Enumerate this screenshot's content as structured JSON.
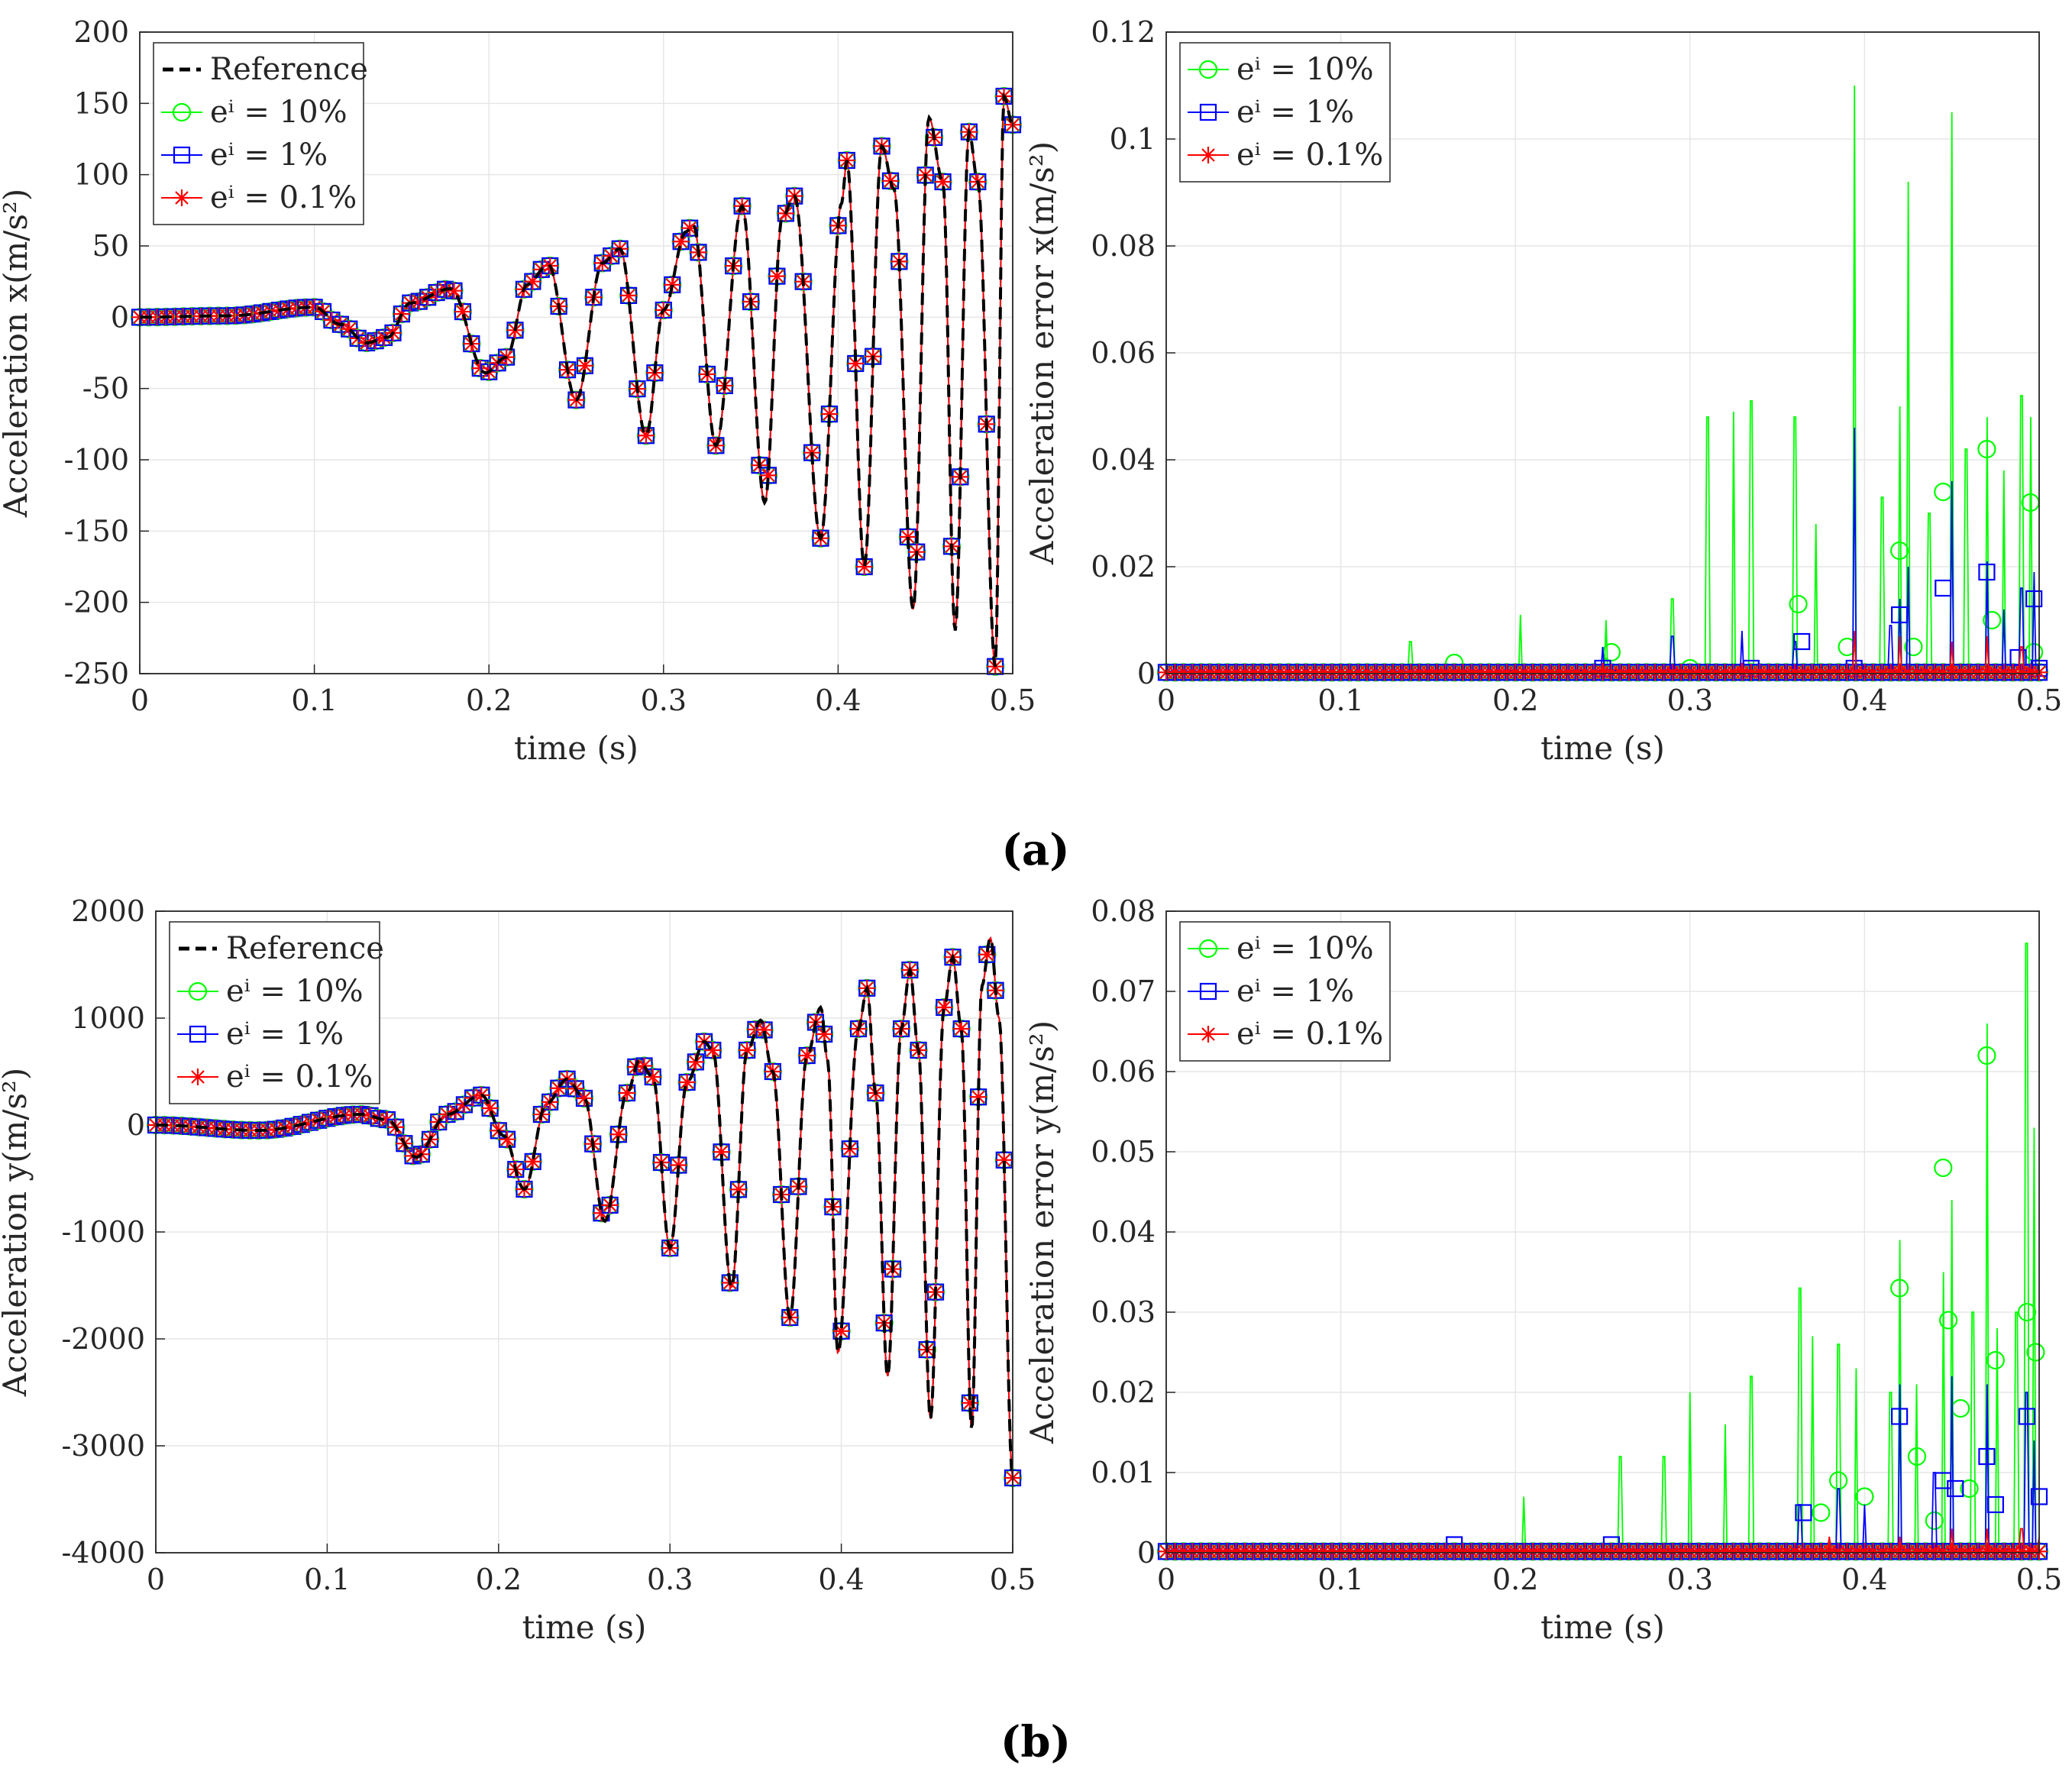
{
  "figure": {
    "panel_labels": [
      "(a)",
      "(b)"
    ]
  },
  "chart_data": [
    {
      "id": "ax",
      "type": "line",
      "panel": "(a)",
      "xlabel": "time (s)",
      "ylabel": "Acceleration x(m/s²)",
      "xlim": [
        0,
        0.5
      ],
      "ylim": [
        -250,
        200
      ],
      "xticks": [
        "0",
        "0.1",
        "0.2",
        "0.3",
        "0.4",
        "0.5"
      ],
      "yticks": [
        "-250",
        "-200",
        "-150",
        "-100",
        "-50",
        "0",
        "50",
        "100",
        "150",
        "200"
      ],
      "grid": true,
      "legend_position": "top-left",
      "legend": [
        "Reference",
        "eⁱ = 10%",
        "eⁱ = 1%",
        "eⁱ = 0.1%"
      ],
      "series": [
        {
          "name": "Reference",
          "style": "dashed",
          "color": "#000000"
        },
        {
          "name": "eⁱ = 10%",
          "marker": "circle",
          "color": "#00ff00"
        },
        {
          "name": "eⁱ = 1%",
          "marker": "square",
          "color": "#0000ff"
        },
        {
          "name": "eⁱ = 0.1%",
          "marker": "asterisk",
          "color": "#ff0000"
        }
      ],
      "signal_points": [
        [
          0,
          0
        ],
        [
          0.05,
          1
        ],
        [
          0.1,
          7
        ],
        [
          0.115,
          -5
        ],
        [
          0.13,
          -18
        ],
        [
          0.142,
          -14
        ],
        [
          0.155,
          10
        ],
        [
          0.178,
          20
        ],
        [
          0.198,
          -39
        ],
        [
          0.21,
          -28
        ],
        [
          0.222,
          23
        ],
        [
          0.234,
          37
        ],
        [
          0.25,
          -58
        ],
        [
          0.265,
          38
        ],
        [
          0.275,
          48
        ],
        [
          0.29,
          -83
        ],
        [
          0.3,
          5
        ],
        [
          0.313,
          60
        ],
        [
          0.317,
          65
        ],
        [
          0.33,
          -90
        ],
        [
          0.345,
          78
        ],
        [
          0.358,
          -130
        ],
        [
          0.368,
          70
        ],
        [
          0.375,
          85
        ],
        [
          0.39,
          -155
        ],
        [
          0.402,
          80
        ],
        [
          0.405,
          110
        ],
        [
          0.415,
          -175
        ],
        [
          0.425,
          120
        ],
        [
          0.432,
          90
        ],
        [
          0.443,
          -205
        ],
        [
          0.452,
          140
        ],
        [
          0.46,
          95
        ],
        [
          0.467,
          -220
        ],
        [
          0.475,
          130
        ],
        [
          0.48,
          95
        ],
        [
          0.49,
          -245
        ],
        [
          0.495,
          155
        ],
        [
          0.5,
          135
        ]
      ]
    },
    {
      "id": "ex",
      "type": "line",
      "panel": "(a)",
      "xlabel": "time (s)",
      "ylabel": "Acceleration error x(m/s²)",
      "xlim": [
        0,
        0.5
      ],
      "ylim": [
        0,
        0.12
      ],
      "xticks": [
        "0",
        "0.1",
        "0.2",
        "0.3",
        "0.4",
        "0.5"
      ],
      "yticks": [
        "0",
        "0.02",
        "0.04",
        "0.06",
        "0.08",
        "0.1",
        "0.12"
      ],
      "grid": true,
      "legend_position": "top-left",
      "legend": [
        "eⁱ = 10%",
        "eⁱ = 1%",
        "eⁱ = 0.1%"
      ],
      "series": [
        {
          "name": "eⁱ = 10%",
          "marker": "circle",
          "color": "#00ff00",
          "spikes": [
            [
              0.14,
              0.006
            ],
            [
              0.203,
              0.011
            ],
            [
              0.252,
              0.01
            ],
            [
              0.29,
              0.014
            ],
            [
              0.31,
              0.048
            ],
            [
              0.325,
              0.049
            ],
            [
              0.335,
              0.051
            ],
            [
              0.36,
              0.048
            ],
            [
              0.372,
              0.028
            ],
            [
              0.394,
              0.11
            ],
            [
              0.41,
              0.033
            ],
            [
              0.42,
              0.05
            ],
            [
              0.425,
              0.092
            ],
            [
              0.437,
              0.03
            ],
            [
              0.45,
              0.105
            ],
            [
              0.458,
              0.042
            ],
            [
              0.47,
              0.048
            ],
            [
              0.48,
              0.038
            ],
            [
              0.49,
              0.052
            ],
            [
              0.495,
              0.048
            ]
          ],
          "markers": [
            [
              0.165,
              0.002
            ],
            [
              0.255,
              0.004
            ],
            [
              0.3,
              0.001
            ],
            [
              0.362,
              0.013
            ],
            [
              0.39,
              0.005
            ],
            [
              0.42,
              0.023
            ],
            [
              0.428,
              0.005
            ],
            [
              0.445,
              0.034
            ],
            [
              0.47,
              0.042
            ],
            [
              0.473,
              0.01
            ],
            [
              0.495,
              0.032
            ],
            [
              0.497,
              0.004
            ]
          ]
        },
        {
          "name": "eⁱ = 1%",
          "marker": "square",
          "color": "#0000ff",
          "spikes": [
            [
              0.25,
              0.005
            ],
            [
              0.29,
              0.007
            ],
            [
              0.33,
              0.008
            ],
            [
              0.36,
              0.006
            ],
            [
              0.394,
              0.046
            ],
            [
              0.415,
              0.009
            ],
            [
              0.42,
              0.014
            ],
            [
              0.425,
              0.02
            ],
            [
              0.45,
              0.036
            ],
            [
              0.47,
              0.021
            ],
            [
              0.48,
              0.012
            ],
            [
              0.49,
              0.016
            ],
            [
              0.497,
              0.019
            ]
          ],
          "markers": [
            [
              0.25,
              0.001
            ],
            [
              0.335,
              0.001
            ],
            [
              0.364,
              0.006
            ],
            [
              0.394,
              0.001
            ],
            [
              0.42,
              0.011
            ],
            [
              0.445,
              0.016
            ],
            [
              0.47,
              0.019
            ],
            [
              0.488,
              0.003
            ],
            [
              0.497,
              0.014
            ],
            [
              0.5,
              0.001
            ]
          ]
        },
        {
          "name": "eⁱ = 0.1%",
          "marker": "asterisk",
          "color": "#ff0000",
          "spikes": [
            [
              0.25,
              0.002
            ],
            [
              0.33,
              0.002
            ],
            [
              0.394,
              0.008
            ],
            [
              0.42,
              0.007
            ],
            [
              0.45,
              0.006
            ],
            [
              0.47,
              0.007
            ],
            [
              0.49,
              0.005
            ]
          ]
        }
      ]
    },
    {
      "id": "ay",
      "type": "line",
      "panel": "(b)",
      "xlabel": "time (s)",
      "ylabel": "Acceleration y(m/s²)",
      "xlim": [
        0,
        0.5
      ],
      "ylim": [
        -4000,
        2000
      ],
      "xticks": [
        "0",
        "0.1",
        "0.2",
        "0.3",
        "0.4",
        "0.5"
      ],
      "yticks": [
        "-4000",
        "-3000",
        "-2000",
        "-1000",
        "0",
        "1000",
        "2000"
      ],
      "grid": true,
      "legend_position": "top-left",
      "legend": [
        "Reference",
        "eⁱ = 10%",
        "eⁱ = 1%",
        "eⁱ = 0.1%"
      ],
      "series": [
        {
          "name": "Reference",
          "style": "dashed",
          "color": "#000000"
        },
        {
          "name": "eⁱ = 10%",
          "marker": "circle",
          "color": "#00ff00"
        },
        {
          "name": "eⁱ = 1%",
          "marker": "square",
          "color": "#0000ff"
        },
        {
          "name": "eⁱ = 0.1%",
          "marker": "asterisk",
          "color": "#ff0000"
        }
      ],
      "signal_points": [
        [
          0,
          0
        ],
        [
          0.06,
          -50
        ],
        [
          0.12,
          100
        ],
        [
          0.135,
          50
        ],
        [
          0.152,
          -300
        ],
        [
          0.17,
          100
        ],
        [
          0.19,
          280
        ],
        [
          0.203,
          -100
        ],
        [
          0.215,
          -600
        ],
        [
          0.228,
          200
        ],
        [
          0.24,
          430
        ],
        [
          0.25,
          250
        ],
        [
          0.262,
          -900
        ],
        [
          0.275,
          300
        ],
        [
          0.282,
          600
        ],
        [
          0.29,
          450
        ],
        [
          0.3,
          -1150
        ],
        [
          0.31,
          400
        ],
        [
          0.32,
          780
        ],
        [
          0.325,
          700
        ],
        [
          0.336,
          -1520
        ],
        [
          0.345,
          700
        ],
        [
          0.353,
          980
        ],
        [
          0.36,
          500
        ],
        [
          0.37,
          -1800
        ],
        [
          0.38,
          650
        ],
        [
          0.388,
          1100
        ],
        [
          0.392,
          600
        ],
        [
          0.398,
          -2130
        ],
        [
          0.41,
          900
        ],
        [
          0.415,
          1280
        ],
        [
          0.42,
          300
        ],
        [
          0.427,
          -2350
        ],
        [
          0.435,
          900
        ],
        [
          0.44,
          1450
        ],
        [
          0.445,
          700
        ],
        [
          0.452,
          -2750
        ],
        [
          0.46,
          1100
        ],
        [
          0.465,
          1570
        ],
        [
          0.47,
          900
        ],
        [
          0.476,
          -2850
        ],
        [
          0.482,
          1300
        ],
        [
          0.487,
          1750
        ],
        [
          0.492,
          1000
        ],
        [
          0.5,
          -3300
        ]
      ]
    },
    {
      "id": "ey",
      "type": "line",
      "panel": "(b)",
      "xlabel": "time (s)",
      "ylabel": "Acceleration error y(m/s²)",
      "xlim": [
        0,
        0.5
      ],
      "ylim": [
        0,
        0.08
      ],
      "xticks": [
        "0",
        "0.1",
        "0.2",
        "0.3",
        "0.4",
        "0.5"
      ],
      "yticks": [
        "0",
        "0.01",
        "0.02",
        "0.03",
        "0.04",
        "0.05",
        "0.06",
        "0.07",
        "0.08"
      ],
      "grid": true,
      "legend_position": "top-left",
      "legend": [
        "eⁱ = 10%",
        "eⁱ = 1%",
        "eⁱ = 0.1%"
      ],
      "series": [
        {
          "name": "eⁱ = 10%",
          "marker": "circle",
          "color": "#00ff00",
          "spikes": [
            [
              0.205,
              0.007
            ],
            [
              0.26,
              0.012
            ],
            [
              0.285,
              0.012
            ],
            [
              0.3,
              0.02
            ],
            [
              0.32,
              0.016
            ],
            [
              0.335,
              0.022
            ],
            [
              0.363,
              0.033
            ],
            [
              0.37,
              0.027
            ],
            [
              0.385,
              0.026
            ],
            [
              0.395,
              0.023
            ],
            [
              0.415,
              0.02
            ],
            [
              0.42,
              0.039
            ],
            [
              0.43,
              0.021
            ],
            [
              0.445,
              0.035
            ],
            [
              0.45,
              0.044
            ],
            [
              0.462,
              0.03
            ],
            [
              0.47,
              0.066
            ],
            [
              0.476,
              0.028
            ],
            [
              0.487,
              0.03
            ],
            [
              0.493,
              0.076
            ],
            [
              0.497,
              0.053
            ]
          ],
          "markers": [
            [
              0.385,
              0.009
            ],
            [
              0.4,
              0.007
            ],
            [
              0.42,
              0.033
            ],
            [
              0.43,
              0.012
            ],
            [
              0.445,
              0.048
            ],
            [
              0.448,
              0.029
            ],
            [
              0.455,
              0.018
            ],
            [
              0.47,
              0.062
            ],
            [
              0.475,
              0.024
            ],
            [
              0.493,
              0.03
            ],
            [
              0.498,
              0.025
            ],
            [
              0.44,
              0.004
            ],
            [
              0.46,
              0.008
            ],
            [
              0.375,
              0.005
            ]
          ]
        },
        {
          "name": "eⁱ = 1%",
          "marker": "square",
          "color": "#0000ff",
          "spikes": [
            [
              0.363,
              0.006
            ],
            [
              0.385,
              0.008
            ],
            [
              0.4,
              0.006
            ],
            [
              0.42,
              0.021
            ],
            [
              0.44,
              0.01
            ],
            [
              0.45,
              0.022
            ],
            [
              0.47,
              0.021
            ],
            [
              0.493,
              0.02
            ],
            [
              0.497,
              0.014
            ]
          ],
          "markers": [
            [
              0.165,
              0.001
            ],
            [
              0.255,
              0.001
            ],
            [
              0.365,
              0.005
            ],
            [
              0.42,
              0.017
            ],
            [
              0.445,
              0.009
            ],
            [
              0.452,
              0.008
            ],
            [
              0.47,
              0.012
            ],
            [
              0.475,
              0.006
            ],
            [
              0.493,
              0.017
            ],
            [
              0.5,
              0.007
            ]
          ]
        },
        {
          "name": "eⁱ = 0.1%",
          "marker": "asterisk",
          "color": "#ff0000",
          "spikes": [
            [
              0.38,
              0.002
            ],
            [
              0.42,
              0.002
            ],
            [
              0.45,
              0.003
            ],
            [
              0.47,
              0.003
            ],
            [
              0.49,
              0.003
            ],
            [
              0.5,
              0.002
            ]
          ]
        }
      ]
    }
  ]
}
